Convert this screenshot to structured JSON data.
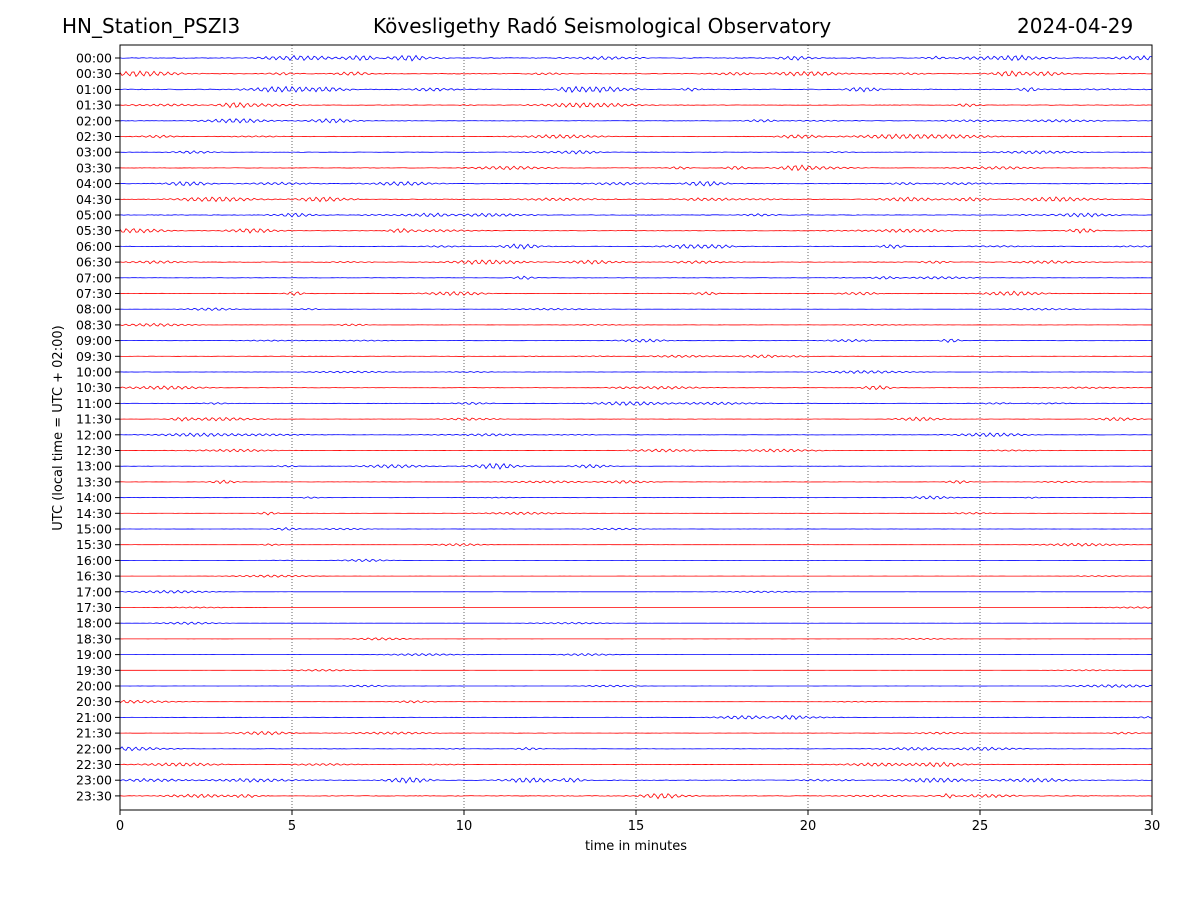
{
  "header": {
    "station": "HN_Station_PSZI3",
    "observatory": "Kövesligethy Radó Seismological Observatory",
    "date": "2024-04-29"
  },
  "chart_data": {
    "type": "line",
    "title": "Kövesligethy Radó Seismological Observatory",
    "xlabel": "time in minutes",
    "ylabel": "UTC (local time = UTC + 02:00)",
    "xlim": [
      0,
      30
    ],
    "x_ticks": [
      "0",
      "5",
      "10",
      "15",
      "20",
      "25",
      "30"
    ],
    "grid_x": true,
    "trace_colors": [
      "#0000ff",
      "#ff0000"
    ],
    "rows": [
      {
        "label": "00:00",
        "activity": 0.55
      },
      {
        "label": "00:30",
        "activity": 0.45
      },
      {
        "label": "01:00",
        "activity": 0.55
      },
      {
        "label": "01:30",
        "activity": 0.35
      },
      {
        "label": "02:00",
        "activity": 0.3
      },
      {
        "label": "02:30",
        "activity": 0.3
      },
      {
        "label": "03:00",
        "activity": 0.25
      },
      {
        "label": "03:30",
        "activity": 0.3
      },
      {
        "label": "04:00",
        "activity": 0.4
      },
      {
        "label": "04:30",
        "activity": 0.4
      },
      {
        "label": "05:00",
        "activity": 0.4
      },
      {
        "label": "05:30",
        "activity": 0.35
      },
      {
        "label": "06:00",
        "activity": 0.4
      },
      {
        "label": "06:30",
        "activity": 0.4
      },
      {
        "label": "07:00",
        "activity": 0.25
      },
      {
        "label": "07:30",
        "activity": 0.3
      },
      {
        "label": "08:00",
        "activity": 0.15
      },
      {
        "label": "08:30",
        "activity": 0.15
      },
      {
        "label": "09:00",
        "activity": 0.2
      },
      {
        "label": "09:30",
        "activity": 0.2
      },
      {
        "label": "10:00",
        "activity": 0.15
      },
      {
        "label": "10:30",
        "activity": 0.25
      },
      {
        "label": "11:00",
        "activity": 0.25
      },
      {
        "label": "11:30",
        "activity": 0.2
      },
      {
        "label": "12:00",
        "activity": 0.25
      },
      {
        "label": "12:30",
        "activity": 0.25
      },
      {
        "label": "13:00",
        "activity": 0.2
      },
      {
        "label": "13:30",
        "activity": 0.2
      },
      {
        "label": "14:00",
        "activity": 0.15
      },
      {
        "label": "14:30",
        "activity": 0.12
      },
      {
        "label": "15:00",
        "activity": 0.12
      },
      {
        "label": "15:30",
        "activity": 0.08
      },
      {
        "label": "16:00",
        "activity": 0.05
      },
      {
        "label": "16:30",
        "activity": 0.05
      },
      {
        "label": "17:00",
        "activity": 0.04
      },
      {
        "label": "17:30",
        "activity": 0.04
      },
      {
        "label": "18:00",
        "activity": 0.04
      },
      {
        "label": "18:30",
        "activity": 0.04
      },
      {
        "label": "19:00",
        "activity": 0.04
      },
      {
        "label": "19:30",
        "activity": 0.04
      },
      {
        "label": "20:00",
        "activity": 0.08
      },
      {
        "label": "20:30",
        "activity": 0.1
      },
      {
        "label": "21:00",
        "activity": 0.2
      },
      {
        "label": "21:30",
        "activity": 0.2
      },
      {
        "label": "22:00",
        "activity": 0.25
      },
      {
        "label": "22:30",
        "activity": 0.3
      },
      {
        "label": "23:00",
        "activity": 0.45
      },
      {
        "label": "23:30",
        "activity": 0.45
      }
    ]
  }
}
